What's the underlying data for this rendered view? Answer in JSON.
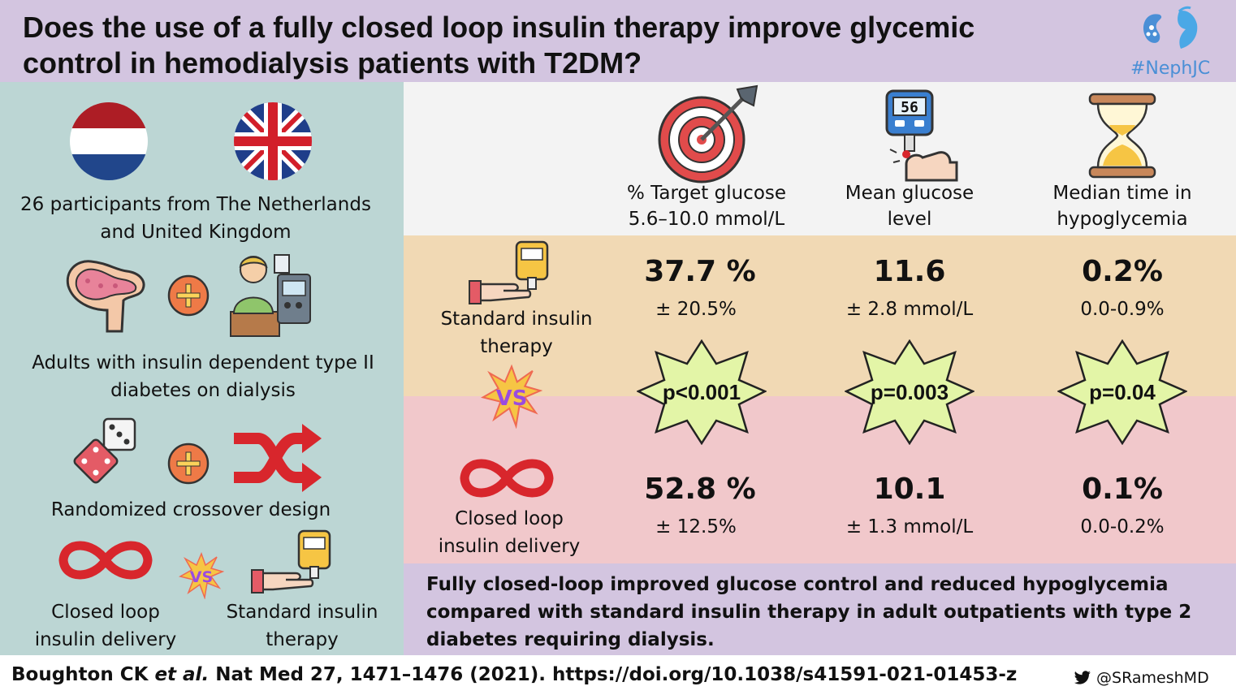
{
  "header": {
    "title_line1": "Does the use of a fully closed loop insulin therapy improve glycemic",
    "title_line2": "control in hemodialysis patients with T2DM?",
    "hashtag": "#NephJC"
  },
  "left_panel": {
    "participants_line1": "26 participants from The Netherlands",
    "participants_line2": "and United Kingdom",
    "population_line1": "Adults with insulin dependent type II",
    "population_line2": "diabetes on dialysis",
    "design": "Randomized crossover design",
    "arm_closed_line1": "Closed loop",
    "arm_closed_line2": "insulin delivery",
    "arm_standard_line1": "Standard insulin",
    "arm_standard_line2": "therapy",
    "vs_label": "VS"
  },
  "columns": {
    "target_line1": "% Target glucose",
    "target_line2": "5.6–10.0 mmol/L",
    "mean_line1": "Mean glucose",
    "mean_line2": "level",
    "median_line1": "Median time in",
    "median_line2": "hypoglycemia",
    "meter_display": "56"
  },
  "standard_row": {
    "label_line1": "Standard insulin",
    "label_line2": "therapy",
    "target_value": "37.7 %",
    "target_sd": "± 20.5%",
    "mean_value": "11.6",
    "mean_sd": "± 2.8 mmol/L",
    "median_value": "0.2%",
    "median_range": "0.0-0.9%"
  },
  "p_values": {
    "target": "p<0.001",
    "mean": "p=0.003",
    "median": "p=0.04"
  },
  "closed_row": {
    "label_line1": "Closed loop",
    "label_line2": "insulin delivery",
    "target_value": "52.8 %",
    "target_sd": "± 12.5%",
    "mean_value": "10.1",
    "mean_sd": "± 1.3 mmol/L",
    "median_value": "0.1%",
    "median_range": "0.0-0.2%"
  },
  "conclusion": "Fully closed-loop improved glucose control and reduced hypoglycemia compared with standard insulin therapy in adult outpatients with type 2 diabetes requiring dialysis.",
  "footer": {
    "authors": "Boughton  CK ",
    "etal": "et al.",
    "journal": " Nat Med 27, 1471–1476 (2021). https://doi.org/10.1038/s41591-021-01453-z",
    "twitter_handle": "@SRameshMD"
  },
  "colors": {
    "header_bg": "#d3c5e0",
    "left_bg": "#bcd6d4",
    "standard_bg": "#f1d9b4",
    "closed_bg": "#f1c8cb",
    "star_fill": "#e3f5a7",
    "accent_red": "#d8262c"
  },
  "icons": [
    "kidney-logo-icon",
    "netherlands-flag-icon",
    "uk-flag-icon",
    "pancreas-icon",
    "plus-icon",
    "patient-dialysis-icon",
    "dice-icon",
    "shuffle-icon",
    "infinity-icon",
    "vs-burst-icon",
    "glucose-meter-hand-icon",
    "target-icon",
    "hourglass-icon",
    "star-burst-icon",
    "twitter-bird-icon"
  ]
}
